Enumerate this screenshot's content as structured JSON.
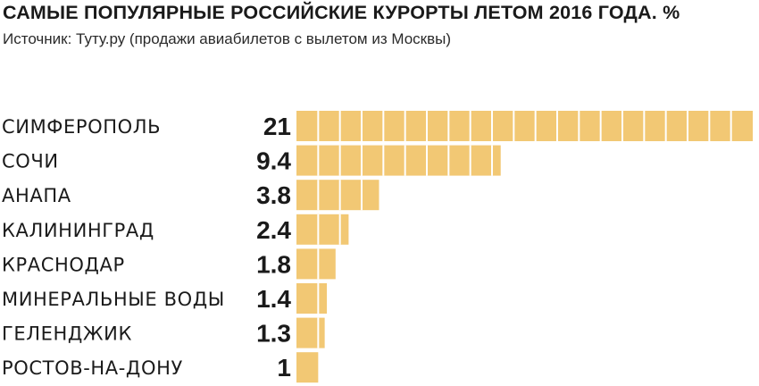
{
  "chart_data": {
    "type": "bar",
    "orientation": "horizontal",
    "title": "САМЫЕ ПОПУЛЯРНЫЕ РОССИЙСКИЕ КУРОРТЫ ЛЕТОМ 2016 ГОДА. %",
    "subtitle": "Источник: Туту.ру (продажи авиабилетов с вылетом из Москвы)",
    "categories": [
      "СИМФЕРОПОЛЬ",
      "СОЧИ",
      "АНАПА",
      "КАЛИНИНГРАД",
      "КРАСНОДАР",
      "МИНЕРАЛЬНЫЕ ВОДЫ",
      "ГЕЛЕНДЖИК",
      "РОСТОВ-НА-ДОНУ"
    ],
    "values": [
      21,
      9.4,
      3.8,
      2.4,
      1.8,
      1.4,
      1.3,
      1
    ],
    "value_labels": [
      "21",
      "9.4",
      "3.8",
      "2.4",
      "1.8",
      "1.4",
      "1.3",
      "1"
    ],
    "bar_color": "#F2C874",
    "segment_divider_color": "#ffffff",
    "xlim": [
      0,
      21
    ],
    "grid": false,
    "legend": "none"
  }
}
